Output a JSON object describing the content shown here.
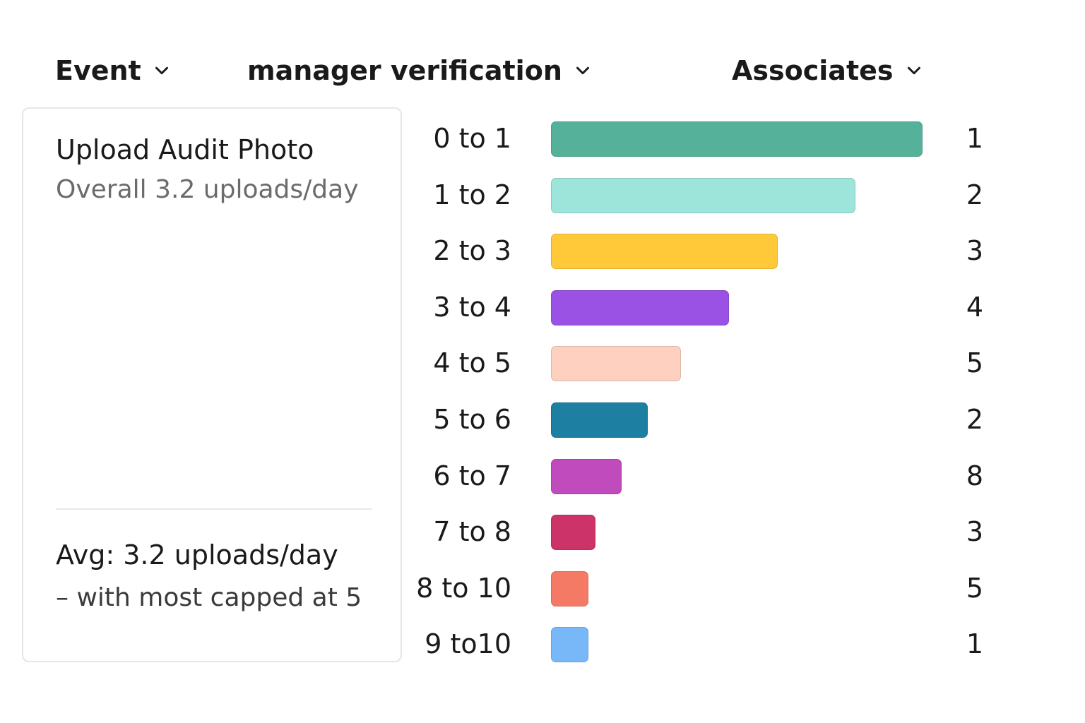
{
  "filters": {
    "event": "Event",
    "verification": "manager verification",
    "associates": "Associates"
  },
  "card": {
    "title": "Upload Audit Photo",
    "subtitle": "Overall 3.2 uploads/day",
    "avg": "Avg: 3.2 uploads/day",
    "note": "– with most capped at  5"
  },
  "colors": {
    "0 to 1": "#55b19a",
    "1 to 2": "#9de4da",
    "2 to 3": "#ffc93a",
    "3 to 4": "#9a52e4",
    "4 to 5": "#fdd0bf",
    "5 to 6": "#1d7fa2",
    "6 to 7": "#c04bbc",
    "7 to 8": "#cc3469",
    "8 to 10": "#f57a66",
    "9 to10": "#78b8f8"
  },
  "chart_data": {
    "type": "bar",
    "orientation": "horizontal",
    "categories": [
      "0 to 1",
      "1 to 2",
      "2 to 3",
      "3 to 4",
      "4 to 5",
      "5 to 6",
      "6 to 7",
      "7 to 8",
      "8 to 10",
      "9 to10"
    ],
    "bar_lengths": [
      100,
      82,
      61,
      48,
      35,
      26,
      19,
      12,
      10,
      10
    ],
    "labels": [
      "1",
      "2",
      "3",
      "4",
      "5",
      "2",
      "8",
      "3",
      "5",
      "1"
    ]
  }
}
